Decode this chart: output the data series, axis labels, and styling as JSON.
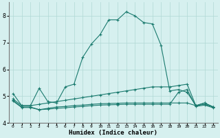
{
  "xlabel": "Humidex (Indice chaleur)",
  "x": [
    0,
    1,
    2,
    3,
    4,
    5,
    6,
    7,
    8,
    9,
    10,
    11,
    12,
    13,
    14,
    15,
    16,
    17,
    18,
    19,
    20,
    21,
    22,
    23
  ],
  "line1": [
    5.1,
    4.65,
    4.65,
    5.3,
    4.8,
    4.75,
    5.35,
    5.45,
    6.45,
    6.95,
    7.3,
    7.85,
    7.85,
    8.15,
    8.0,
    7.75,
    7.7,
    6.9,
    5.2,
    5.25,
    5.15,
    4.65,
    4.75,
    4.6
  ],
  "line2": [
    4.9,
    4.65,
    4.65,
    4.7,
    4.75,
    4.8,
    4.85,
    4.9,
    4.95,
    5.0,
    5.05,
    5.1,
    5.15,
    5.2,
    5.25,
    5.3,
    5.35,
    5.35,
    5.35,
    5.4,
    5.45,
    4.65,
    4.75,
    4.6
  ],
  "line3": [
    4.85,
    4.6,
    4.6,
    4.5,
    4.55,
    4.6,
    4.62,
    4.65,
    4.67,
    4.7,
    4.72,
    4.73,
    4.74,
    4.75,
    4.75,
    4.75,
    4.75,
    4.75,
    4.75,
    4.75,
    4.75,
    4.65,
    4.7,
    4.6
  ],
  "line4": [
    4.82,
    4.58,
    4.58,
    4.5,
    4.52,
    4.55,
    4.57,
    4.6,
    4.62,
    4.65,
    4.67,
    4.68,
    4.69,
    4.7,
    4.7,
    4.7,
    4.7,
    4.7,
    4.7,
    5.15,
    5.25,
    4.62,
    4.67,
    4.57
  ],
  "line_color": "#1a7a6e",
  "bg_color": "#d6f0ef",
  "grid_color": "#b0d8d4",
  "ylim": [
    4.0,
    8.5
  ],
  "xlim": [
    -0.5,
    23.5
  ],
  "yticks": [
    4,
    5,
    6,
    7,
    8
  ],
  "xtick_labels": [
    "0",
    "1",
    "2",
    "3",
    "4",
    "5",
    "6",
    "7",
    "8",
    "9",
    "10",
    "11",
    "12",
    "13",
    "14",
    "15",
    "16",
    "17",
    "18",
    "19",
    "20",
    "21",
    "22",
    "23"
  ]
}
